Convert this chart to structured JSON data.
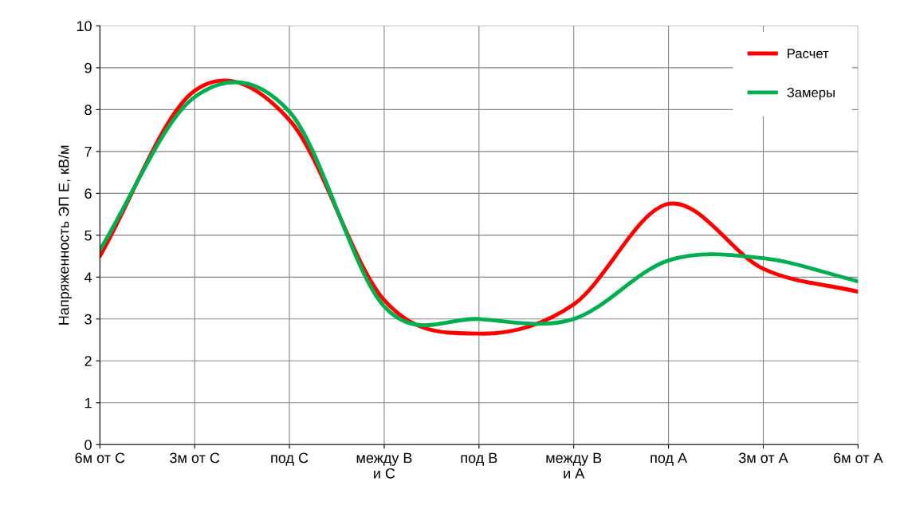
{
  "chart_data": {
    "type": "line",
    "ylabel": "Напряженность ЭП E, кВ/м",
    "categories": [
      "6м от С",
      "3м от С",
      "под С",
      "между B\nи С",
      "под В",
      "между В\nи А",
      "под А",
      "3м от А",
      "6м от А"
    ],
    "series": [
      {
        "name": "Расчет",
        "color": "#ff0000",
        "values": [
          4.5,
          8.45,
          7.75,
          3.45,
          2.65,
          3.35,
          5.75,
          4.2,
          3.65
        ]
      },
      {
        "name": "Замеры",
        "color": "#00b050",
        "values": [
          4.65,
          8.3,
          7.95,
          3.3,
          3.0,
          3.0,
          4.4,
          4.45,
          3.9
        ]
      }
    ],
    "ylim": [
      0,
      10
    ],
    "yticks": [
      0,
      1,
      2,
      3,
      4,
      5,
      6,
      7,
      8,
      9,
      10
    ],
    "grid": true,
    "legend": "top right",
    "marker": "none",
    "line_style": "solid"
  }
}
